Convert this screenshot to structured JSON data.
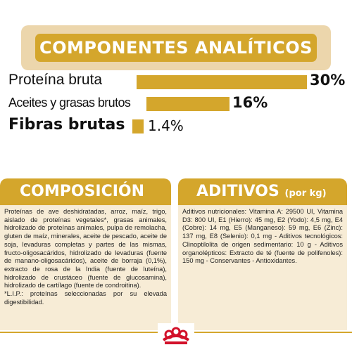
{
  "header": {
    "title": "COMPONENTES ANALÍTICOS"
  },
  "analytics": [
    {
      "label": "Proteína bruta",
      "value": "30%",
      "fraction": 0.3
    },
    {
      "label": "Aceites y grasas brutos",
      "value": "16%",
      "fraction": 0.16
    },
    {
      "label": "Fibras brutas",
      "value": "1.4%",
      "fraction": 0.014
    }
  ],
  "composicion": {
    "title": "COMPOSICIÓN",
    "text": "Proteínas de ave deshidratadas, arroz, maíz, trigo, aislado de proteínas vegetales*, grasas animales, hidrolizado de proteínas animales, pulpa de remolacha, gluten de maíz, minerales, aceite de pescado, aceite de soja, levaduras completas y partes de las mismas, fructo-oligosacáridos, hidrolizado de levaduras (fuente de manano-oligosacáridos), aceite de borraja (0,1%), extracto de rosa de la India (fuente de luteína), hidrolizado de crustáceo (fuente de glucosamina), hidrolizado de cartílago (fuente de condroitina).\n  *L.I.P.: proteínas seleccionadas por su elevada digestibilidad."
  },
  "aditivos": {
    "title": "ADITIVOS",
    "unit": "(por kg)",
    "text": "Aditivos nutricionales: Vitamina A: 29500 UI, Vitamina D3: 800 UI, E1 (Hierro): 45 mg, E2 (Yodo): 4,5 mg, E4 (Cobre): 14 mg, E5 (Manganeso): 59 mg, E6 (Zinc): 137 mg, E8 (Selenio): 0,1 mg - Aditivos tecnológicos: Clinoptilolita de origen sedimentario: 10 g - Aditivos organolépticos: Extracto de té (fuente de polifenoles): 150 mg - Conservantes - Antioxidantes."
  },
  "colors": {
    "accent": "#d4a62c",
    "accent_light": "#ecd6ac",
    "card_bg": "#f7ecd6",
    "logo_red": "#d2112a"
  },
  "logo": {
    "icon": "royal-canin-crown-logo"
  }
}
